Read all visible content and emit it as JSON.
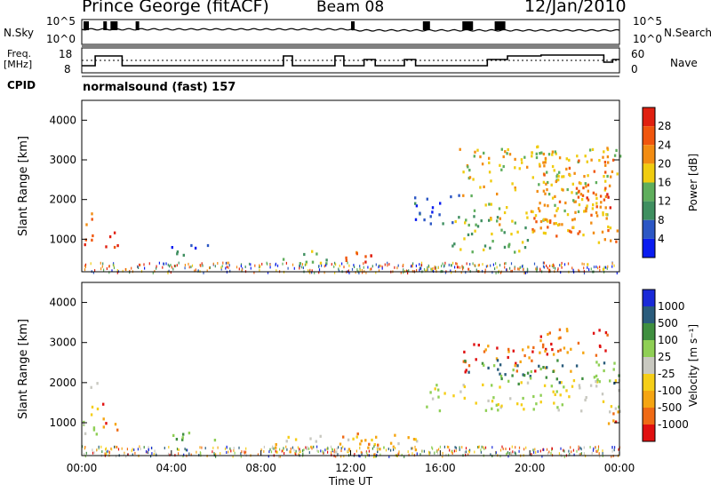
{
  "header": {
    "station": "Prince George (fitACF)",
    "beam": "Beam 08",
    "date": "12/Jan/2010"
  },
  "noise_panel": {
    "left_label": "N.Sky",
    "right_label": "N.Search",
    "left_ticks": [
      "10^5",
      "10^0"
    ],
    "right_ticks": [
      "10^5",
      "10^0"
    ]
  },
  "freq_panel": {
    "left_label_1": "Freq.",
    "left_label_2": "[MHz]",
    "left_ticks": [
      "18",
      "8"
    ],
    "right_label": "Nave",
    "right_ticks": [
      "60",
      "0"
    ]
  },
  "cpid": {
    "label": "CPID",
    "program": "normalsound (fast) 157"
  },
  "colors": {
    "power_scale": [
      "#0a1cf0",
      "#2c57c4",
      "#3f8f60",
      "#5fae5c",
      "#f0cc10",
      "#f28c12",
      "#f0560e",
      "#e02010"
    ],
    "velocity_scale": [
      "#1a2ad8",
      "#2a5c7c",
      "#3f8f3f",
      "#8fcf55",
      "#c8c8c0",
      "#f5ce18",
      "#f5a512",
      "#ef6a15",
      "#e01010"
    ]
  },
  "chart_data": [
    {
      "type": "heatmap",
      "title": "Power",
      "ylabel": "Slant Range [km]",
      "colorbar_label": "Power [dB]",
      "colorbar_ticks": [
        "28",
        "24",
        "20",
        "16",
        "12",
        "8",
        "4"
      ],
      "ylim": [
        180,
        4500
      ],
      "yticks": [
        "1000",
        "2000",
        "3000",
        "4000"
      ],
      "xlim": [
        0,
        24
      ],
      "regions": [
        {
          "t0": 0.0,
          "t1": 0.6,
          "r0": 800,
          "r1": 1900,
          "level": 6
        },
        {
          "t0": 1.0,
          "t1": 1.7,
          "r0": 800,
          "r1": 1500,
          "level": 7
        },
        {
          "t0": 3.8,
          "t1": 6.0,
          "r0": 600,
          "r1": 900,
          "level": 1
        },
        {
          "t0": 8.7,
          "t1": 11.0,
          "r0": 400,
          "r1": 800,
          "level": 3
        },
        {
          "t0": 11.2,
          "t1": 13.0,
          "r0": 450,
          "r1": 850,
          "level": 6
        },
        {
          "t0": 14.8,
          "t1": 16.8,
          "r0": 1400,
          "r1": 2200,
          "level": 1
        },
        {
          "t0": 16.4,
          "t1": 20.0,
          "r0": 700,
          "r1": 1700,
          "level": 3
        },
        {
          "t0": 16.8,
          "t1": 24.0,
          "r0": 1400,
          "r1": 3300,
          "level": 4
        },
        {
          "t0": 20.0,
          "t1": 23.7,
          "r0": 1000,
          "r1": 3400,
          "level": 5
        },
        {
          "t0": 22.5,
          "t1": 23.6,
          "r0": 1800,
          "r1": 2400,
          "level": 7
        },
        {
          "t0": 23.0,
          "t1": 24.0,
          "r0": 900,
          "r1": 1600,
          "level": 5
        }
      ]
    },
    {
      "type": "heatmap",
      "title": "Velocity",
      "ylabel": "Slant Range [km]",
      "xlabel": "Time UT",
      "colorbar_label": "Velocity [m s⁻¹]",
      "colorbar_ticks": [
        "1000",
        "500",
        "100",
        "25",
        "-25",
        "-100",
        "-500",
        "-1000"
      ],
      "ylim": [
        180,
        4500
      ],
      "yticks": [
        "1000",
        "2000",
        "3000",
        "4000"
      ],
      "xlim": [
        0,
        24
      ],
      "xticks": [
        "00:00",
        "04:00",
        "08:00",
        "12:00",
        "16:00",
        "20:00",
        "00:00"
      ],
      "regions": [
        {
          "t0": 0.0,
          "t1": 0.7,
          "r0": 500,
          "r1": 2100,
          "level": 4
        },
        {
          "t0": 0.9,
          "t1": 1.7,
          "r0": 800,
          "r1": 1500,
          "level": 7
        },
        {
          "t0": 4.0,
          "t1": 6.0,
          "r0": 600,
          "r1": 900,
          "level": 3
        },
        {
          "t0": 8.5,
          "t1": 15.0,
          "r0": 300,
          "r1": 700,
          "level": 5
        },
        {
          "t0": 11.0,
          "t1": 14.0,
          "r0": 450,
          "r1": 800,
          "level": 6
        },
        {
          "t0": 15.3,
          "t1": 24.0,
          "r0": 1300,
          "r1": 2100,
          "level": 4
        },
        {
          "t0": 17.0,
          "t1": 22.0,
          "r0": 2300,
          "r1": 3000,
          "level": 7
        },
        {
          "t0": 20.0,
          "t1": 23.5,
          "r0": 2700,
          "r1": 3400,
          "level": 7
        },
        {
          "t0": 23.2,
          "t1": 24.0,
          "r0": 1000,
          "r1": 1600,
          "level": 7
        },
        {
          "t0": 17.0,
          "t1": 24.0,
          "r0": 2000,
          "r1": 2600,
          "level": 2
        }
      ]
    }
  ]
}
